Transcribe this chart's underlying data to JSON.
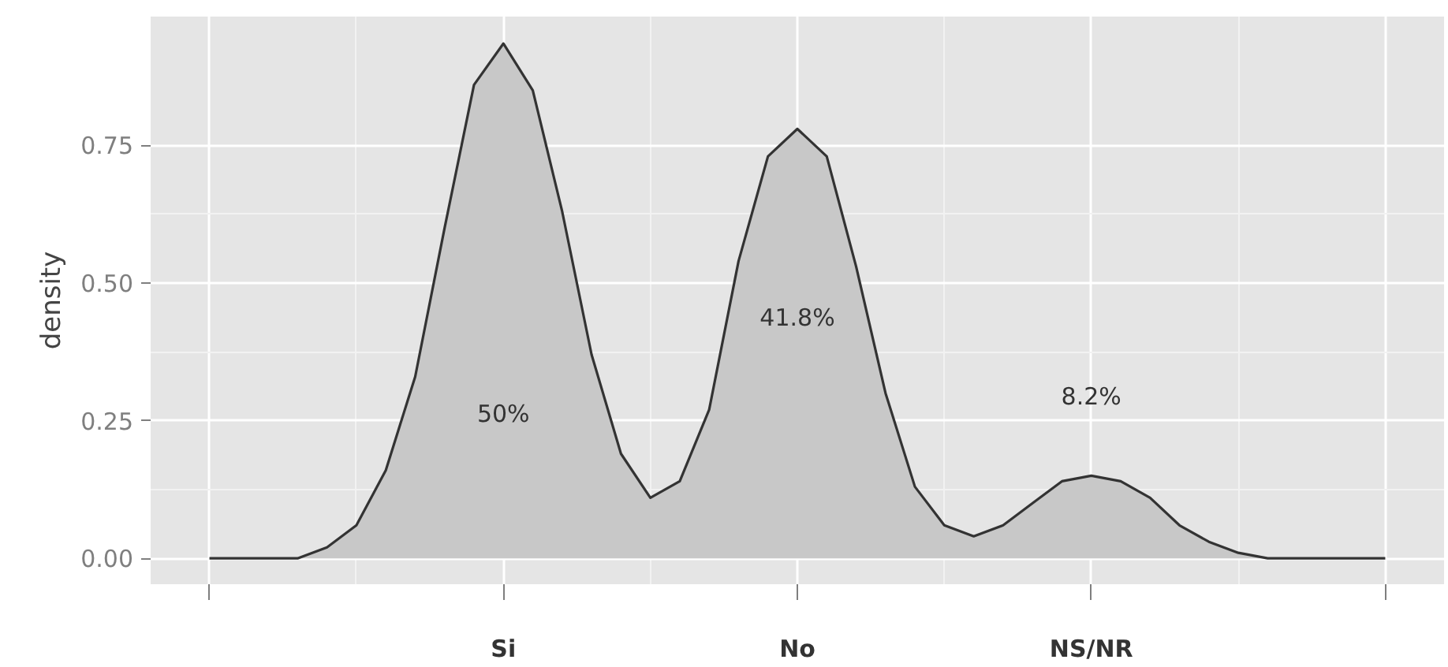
{
  "chart_data": {
    "type": "area",
    "ylabel": "density",
    "categories": [
      null,
      null,
      null,
      null,
      null,
      null,
      null,
      null,
      null,
      null,
      "Si",
      null,
      null,
      null,
      null,
      null,
      null,
      null,
      null,
      null,
      "No",
      null,
      null,
      null,
      null,
      null,
      null,
      null,
      null,
      null,
      "NS/NR",
      null,
      null,
      null,
      null,
      null,
      null,
      null,
      null,
      null,
      null
    ],
    "series": [
      {
        "color": "#c8c8c8",
        "values": [
          0,
          0,
          0,
          0,
          0.02,
          0.06,
          0.16,
          0.33,
          0.6,
          0.86,
          0.935,
          0.85,
          0.63,
          0.37,
          0.19,
          0.11,
          0.14,
          0.27,
          0.54,
          0.73,
          0.78,
          0.73,
          0.53,
          0.3,
          0.13,
          0.06,
          0.04,
          0.06,
          0.1,
          0.14,
          0.15,
          0.14,
          0.11,
          0.06,
          0.03,
          0.01,
          0,
          0,
          0,
          0,
          0
        ]
      }
    ],
    "ylim": [
      -0.047,
      0.984
    ],
    "yticks": [
      {
        "value": 0,
        "label": "0.00"
      },
      {
        "value": 0.25,
        "label": "0.25"
      },
      {
        "value": 0.5,
        "label": "0.50"
      },
      {
        "value": 0.75,
        "label": "0.75"
      }
    ],
    "grid": true,
    "annotations": [
      "50%",
      "41.8%",
      "8.2%"
    ]
  }
}
